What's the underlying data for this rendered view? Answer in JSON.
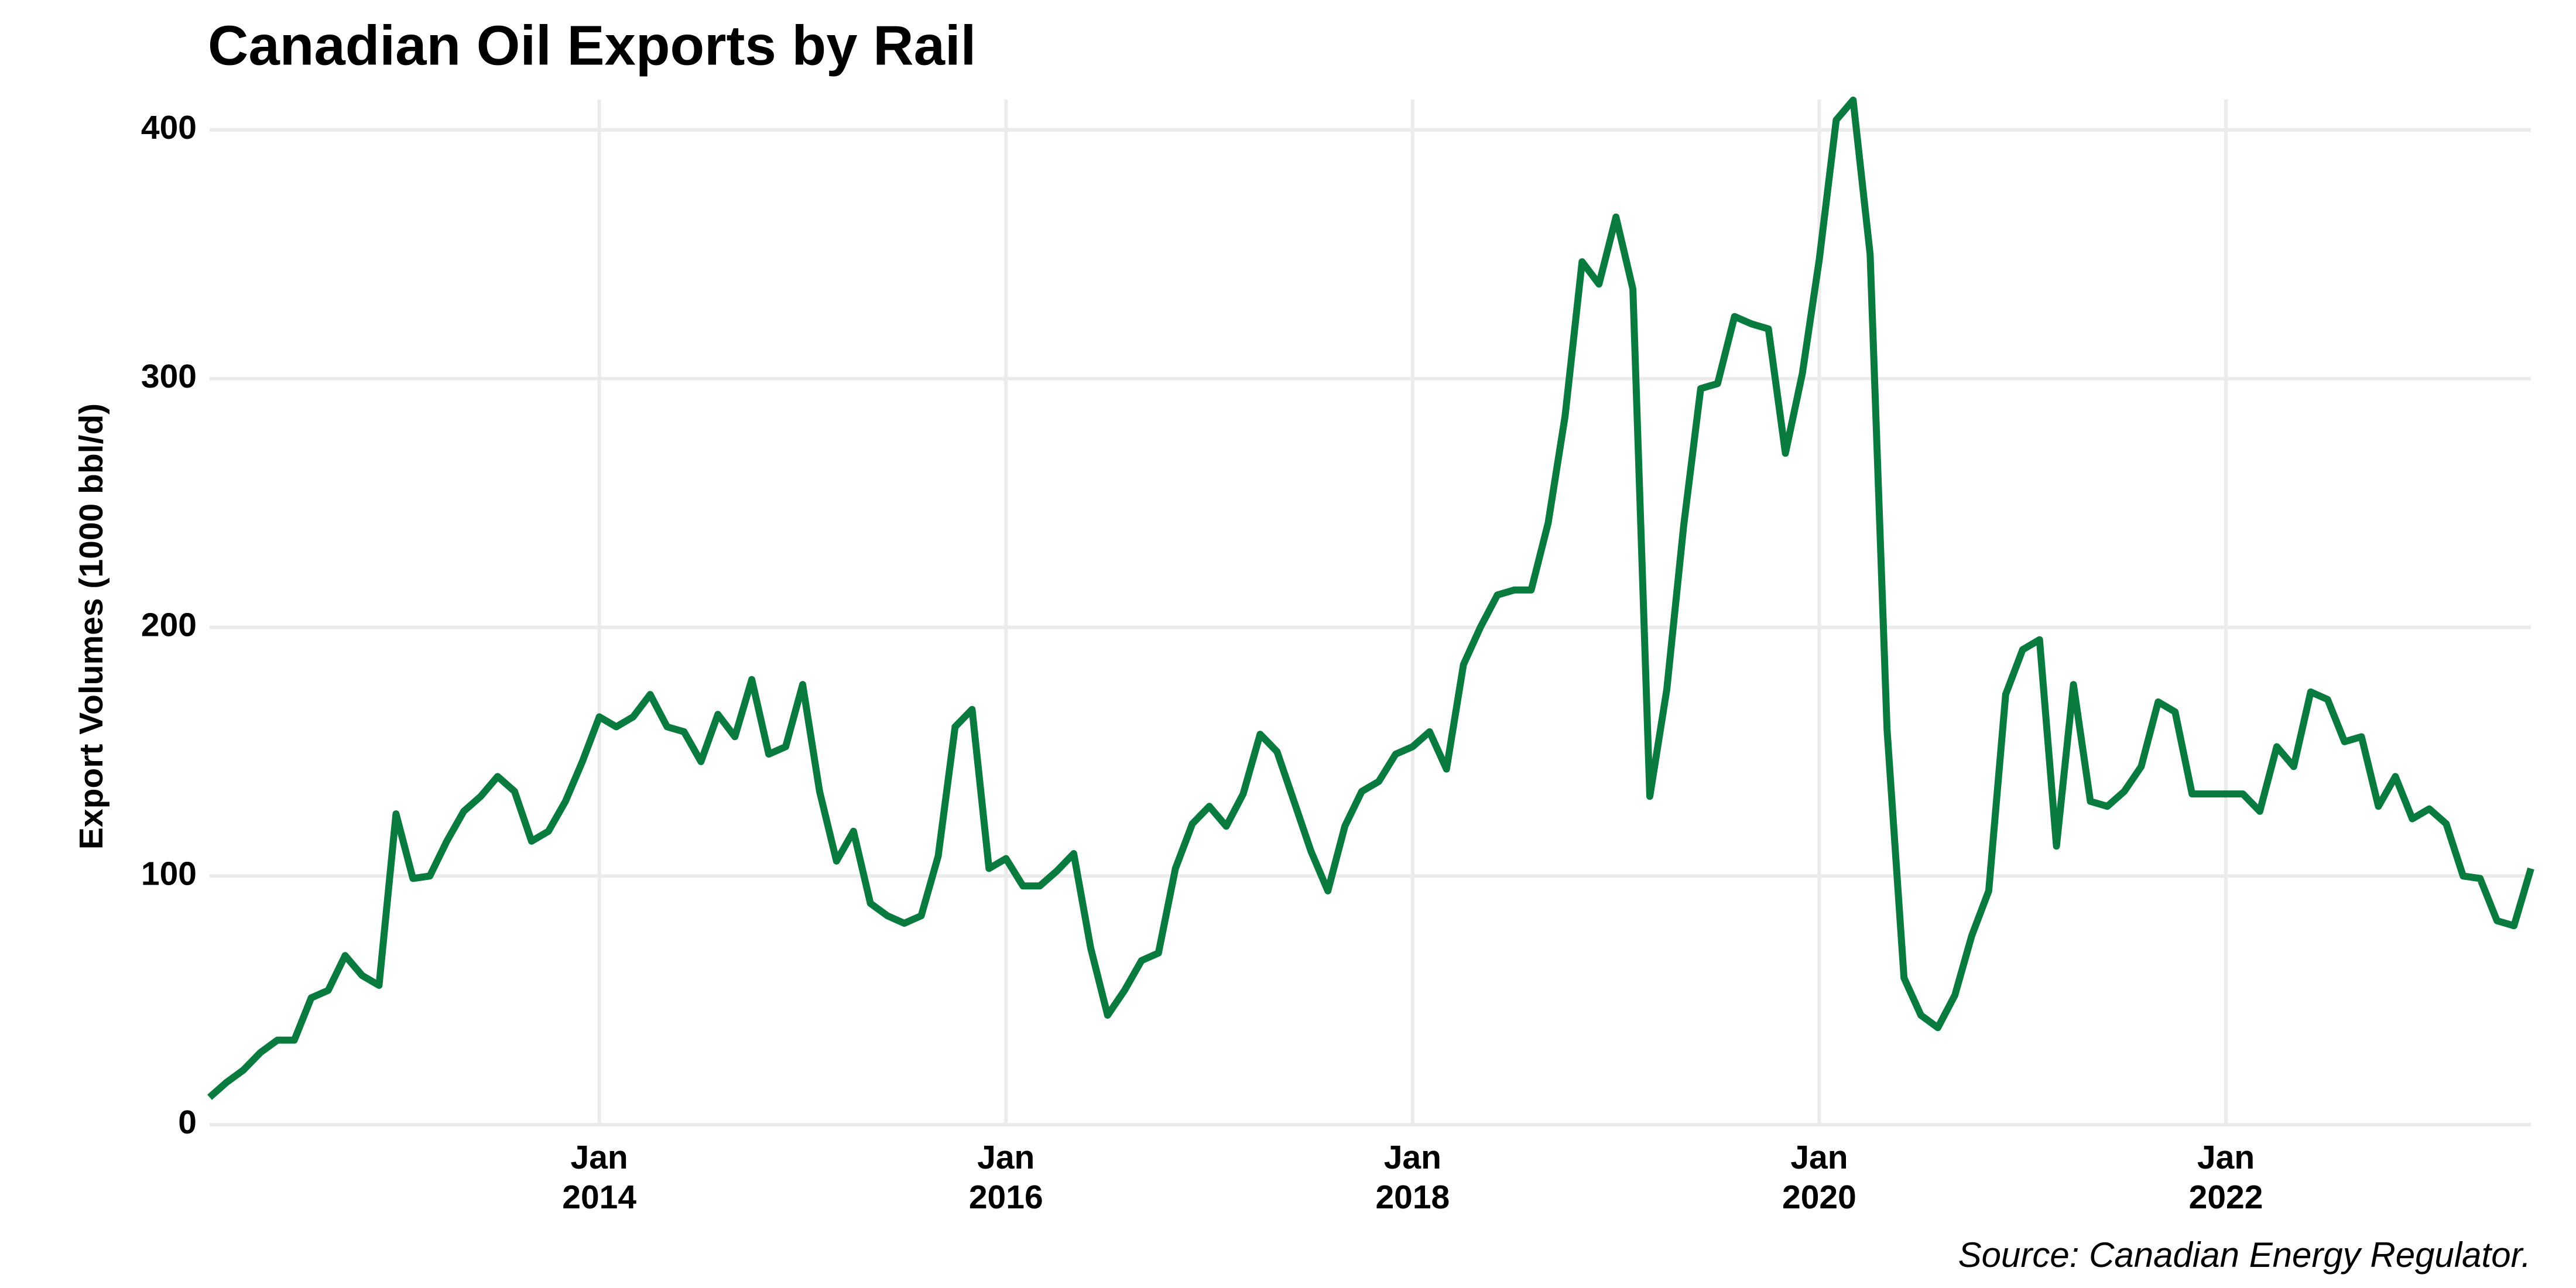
{
  "chart_data": {
    "type": "line",
    "title": "Canadian Oil Exports by Rail",
    "y_label": "Export Volumes (1000 bbl/d)",
    "source": "Source: Canadian Energy Regulator.",
    "color": "#0a7b3e",
    "grid": true,
    "xlim": [
      "2012-02",
      "2023-07"
    ],
    "xticks": [
      {
        "value": "2014-01",
        "label": "Jan\n2014"
      },
      {
        "value": "2016-01",
        "label": "Jan\n2016"
      },
      {
        "value": "2018-01",
        "label": "Jan\n2018"
      },
      {
        "value": "2020-01",
        "label": "Jan\n2020"
      },
      {
        "value": "2022-01",
        "label": "Jan\n2022"
      }
    ],
    "ylim": [
      0,
      400
    ],
    "yticks": [
      0,
      100,
      200,
      300,
      400
    ],
    "x": [
      "2012-02",
      "2012-03",
      "2012-04",
      "2012-05",
      "2012-06",
      "2012-07",
      "2012-08",
      "2012-09",
      "2012-10",
      "2012-11",
      "2012-12",
      "2013-01",
      "2013-02",
      "2013-03",
      "2013-04",
      "2013-05",
      "2013-06",
      "2013-07",
      "2013-08",
      "2013-09",
      "2013-10",
      "2013-11",
      "2013-12",
      "2014-01",
      "2014-02",
      "2014-03",
      "2014-04",
      "2014-05",
      "2014-06",
      "2014-07",
      "2014-08",
      "2014-09",
      "2014-10",
      "2014-11",
      "2014-12",
      "2015-01",
      "2015-02",
      "2015-03",
      "2015-04",
      "2015-05",
      "2015-06",
      "2015-07",
      "2015-08",
      "2015-09",
      "2015-10",
      "2015-11",
      "2015-12",
      "2016-01",
      "2016-02",
      "2016-03",
      "2016-04",
      "2016-05",
      "2016-06",
      "2016-07",
      "2016-08",
      "2016-09",
      "2016-10",
      "2016-11",
      "2016-12",
      "2017-01",
      "2017-02",
      "2017-03",
      "2017-04",
      "2017-05",
      "2017-06",
      "2017-07",
      "2017-08",
      "2017-09",
      "2017-10",
      "2017-11",
      "2017-12",
      "2018-01",
      "2018-02",
      "2018-03",
      "2018-04",
      "2018-05",
      "2018-06",
      "2018-07",
      "2018-08",
      "2018-09",
      "2018-10",
      "2018-11",
      "2018-12",
      "2019-01",
      "2019-02",
      "2019-03",
      "2019-04",
      "2019-05",
      "2019-06",
      "2019-07",
      "2019-08",
      "2019-09",
      "2019-10",
      "2019-11",
      "2019-12",
      "2020-01",
      "2020-02",
      "2020-03",
      "2020-04",
      "2020-05",
      "2020-06",
      "2020-07",
      "2020-08",
      "2020-09",
      "2020-10",
      "2020-11",
      "2020-12",
      "2021-01",
      "2021-02",
      "2021-03",
      "2021-04",
      "2021-05",
      "2021-06",
      "2021-07",
      "2021-08",
      "2021-09",
      "2021-10",
      "2021-11",
      "2021-12",
      "2022-01",
      "2022-02",
      "2022-03",
      "2022-04",
      "2022-05",
      "2022-06",
      "2022-07",
      "2022-08",
      "2022-09",
      "2022-10",
      "2022-11",
      "2022-12",
      "2023-01",
      "2023-02",
      "2023-03",
      "2023-04",
      "2023-05",
      "2023-06",
      "2023-07"
    ],
    "values": [
      11,
      17,
      22,
      29,
      34,
      34,
      51,
      54,
      68,
      60,
      56,
      125,
      99,
      100,
      114,
      126,
      132,
      140,
      134,
      114,
      118,
      130,
      146,
      164,
      160,
      164,
      173,
      160,
      158,
      146,
      165,
      156,
      179,
      149,
      152,
      177,
      134,
      106,
      118,
      89,
      84,
      81,
      84,
      108,
      160,
      167,
      103,
      107,
      96,
      96,
      102,
      109,
      71,
      44,
      54,
      66,
      69,
      103,
      121,
      128,
      120,
      133,
      157,
      150,
      130,
      110,
      94,
      120,
      134,
      138,
      149,
      152,
      158,
      143,
      185,
      200,
      213,
      215,
      215,
      242,
      285,
      347,
      338,
      365,
      336,
      132,
      175,
      241,
      296,
      298,
      325,
      322,
      320,
      270,
      302,
      348,
      404,
      412,
      350,
      159,
      59,
      44,
      39,
      52,
      76,
      94,
      173,
      191,
      195,
      112,
      177,
      130,
      128,
      134,
      144,
      170,
      166,
      133,
      133,
      133,
      133,
      126,
      152,
      144,
      174,
      171,
      154,
      156,
      128,
      140,
      123,
      127,
      121,
      100,
      99,
      82,
      80,
      103
    ]
  }
}
